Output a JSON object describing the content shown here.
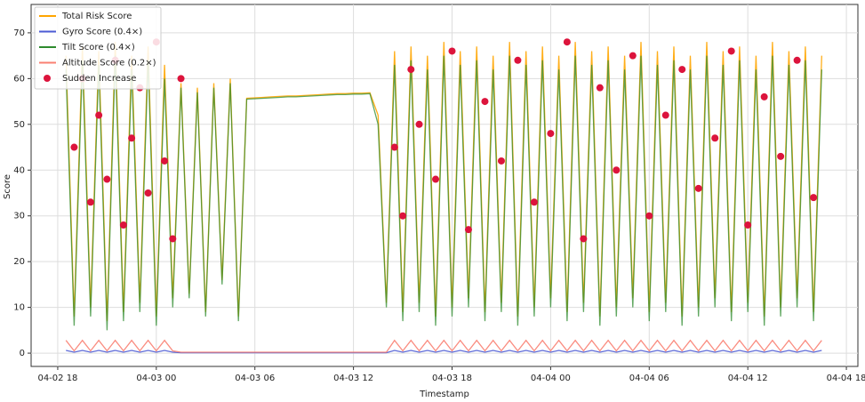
{
  "chart_data": {
    "type": "line",
    "xlabel": "Timestamp",
    "ylabel": "Score",
    "x": [
      0.5,
      1,
      1.5,
      2,
      2.5,
      3,
      3.5,
      4,
      4.5,
      5,
      5.5,
      6,
      6.5,
      7,
      7.5,
      8,
      8.5,
      9,
      9.5,
      10,
      10.5,
      11,
      11.5,
      12,
      12.5,
      13,
      13.5,
      14,
      14.5,
      15,
      15.5,
      16,
      16.5,
      17,
      17.5,
      18,
      18.5,
      19,
      19.5,
      20,
      20.5,
      21,
      21.5,
      22,
      22.5,
      23,
      23.5,
      24,
      24.5,
      25,
      25.5,
      26,
      26.5,
      27,
      27.5,
      28,
      28.5,
      29,
      29.5,
      30,
      30.5,
      31,
      31.5,
      32,
      32.5,
      33,
      33.5,
      34,
      34.5,
      35,
      35.5,
      36,
      36.5,
      37,
      37.5,
      38,
      38.5,
      39,
      39.5,
      40,
      40.5,
      41,
      41.5,
      42,
      42.5,
      43,
      43.5,
      44,
      44.5,
      45,
      45.5,
      46,
      46.5
    ],
    "series": [
      {
        "name": "Total Risk Score",
        "color": "#ffa500",
        "values": [
          65,
          8,
          67,
          10,
          66,
          7,
          68,
          9,
          65,
          11,
          67,
          8,
          63,
          12,
          59,
          13,
          58,
          9,
          59,
          16,
          60,
          8,
          55.7,
          55.8,
          55.9,
          56,
          56.1,
          56.2,
          56.2,
          56.3,
          56.4,
          56.5,
          56.6,
          56.7,
          56.7,
          56.8,
          56.8,
          56.9,
          52,
          11,
          66,
          9,
          67,
          11,
          65,
          8,
          68,
          10,
          66,
          12,
          67,
          9,
          65,
          11,
          68,
          8,
          66,
          10,
          67,
          12,
          65,
          9,
          68,
          11,
          66,
          8,
          67,
          10,
          65,
          12,
          68,
          9,
          66,
          11,
          67,
          8,
          65,
          10,
          68,
          12,
          66,
          9,
          67,
          11,
          65,
          8,
          68,
          10,
          66,
          12,
          67,
          9,
          65
        ]
      },
      {
        "name": "Gyro Score (0.4×)",
        "color": "#4c5bd4",
        "values": [
          0.6,
          0.2,
          0.6,
          0.2,
          0.6,
          0.2,
          0.6,
          0.2,
          0.6,
          0.2,
          0.6,
          0.2,
          0.6,
          0.2,
          0.1,
          0.1,
          0.1,
          0.1,
          0.1,
          0.1,
          0.1,
          0.1,
          0.1,
          0.1,
          0.1,
          0.1,
          0.1,
          0.1,
          0.1,
          0.1,
          0.1,
          0.1,
          0.1,
          0.1,
          0.1,
          0.1,
          0.1,
          0.1,
          0.1,
          0.1,
          0.6,
          0.2,
          0.6,
          0.2,
          0.6,
          0.2,
          0.6,
          0.2,
          0.6,
          0.2,
          0.6,
          0.2,
          0.6,
          0.2,
          0.6,
          0.2,
          0.6,
          0.2,
          0.6,
          0.2,
          0.6,
          0.2,
          0.6,
          0.2,
          0.6,
          0.2,
          0.6,
          0.2,
          0.6,
          0.2,
          0.6,
          0.2,
          0.6,
          0.2,
          0.6,
          0.2,
          0.6,
          0.2,
          0.6,
          0.2,
          0.6,
          0.2,
          0.6,
          0.2,
          0.6,
          0.2,
          0.6,
          0.2,
          0.6,
          0.2,
          0.6,
          0.2,
          0.6
        ]
      },
      {
        "name": "Tilt Score (0.4×)",
        "color": "#2e8b2e",
        "values": [
          62,
          6,
          64,
          8,
          63,
          5,
          65,
          7,
          62,
          9,
          64,
          6,
          60,
          10,
          58,
          12,
          57,
          8,
          58,
          15,
          59,
          7,
          55.5,
          55.6,
          55.7,
          55.8,
          55.9,
          56,
          56,
          56.1,
          56.2,
          56.3,
          56.4,
          56.5,
          56.5,
          56.6,
          56.6,
          56.7,
          50,
          10,
          63,
          7,
          64,
          9,
          62,
          6,
          65,
          8,
          63,
          10,
          64,
          7,
          62,
          9,
          65,
          6,
          63,
          8,
          64,
          10,
          62,
          7,
          65,
          9,
          63,
          6,
          64,
          8,
          62,
          10,
          65,
          7,
          63,
          9,
          64,
          6,
          62,
          8,
          65,
          10,
          63,
          7,
          64,
          9,
          62,
          6,
          65,
          8,
          63,
          10,
          64,
          7,
          62
        ]
      },
      {
        "name": "Altitude Score (0.2×)",
        "color": "#fa8072",
        "values": [
          2.8,
          0.5,
          2.8,
          0.5,
          2.8,
          0.5,
          2.8,
          0.5,
          2.8,
          0.5,
          2.8,
          0.5,
          2.8,
          0.5,
          0.2,
          0.2,
          0.2,
          0.2,
          0.2,
          0.2,
          0.2,
          0.2,
          0.2,
          0.2,
          0.2,
          0.2,
          0.2,
          0.2,
          0.2,
          0.2,
          0.2,
          0.2,
          0.2,
          0.2,
          0.2,
          0.2,
          0.2,
          0.2,
          0.2,
          0.2,
          2.8,
          0.5,
          2.8,
          0.5,
          2.8,
          0.5,
          2.8,
          0.5,
          2.8,
          0.5,
          2.8,
          0.5,
          2.8,
          0.5,
          2.8,
          0.5,
          2.8,
          0.5,
          2.8,
          0.5,
          2.8,
          0.5,
          2.8,
          0.5,
          2.8,
          0.5,
          2.8,
          0.5,
          2.8,
          0.5,
          2.8,
          0.5,
          2.8,
          0.5,
          2.8,
          0.5,
          2.8,
          0.5,
          2.8,
          0.5,
          2.8,
          0.5,
          2.8,
          0.5,
          2.8,
          0.5,
          2.8,
          0.5,
          2.8,
          0.5,
          2.8,
          0.5,
          2.8
        ]
      },
      {
        "name": "Sudden Increase",
        "type": "scatter",
        "color": "#dc143c",
        "x": [
          1,
          1.5,
          2,
          2.5,
          3,
          3.5,
          4,
          4.5,
          5,
          5.5,
          6,
          6.5,
          7,
          7.5,
          20.5,
          21,
          21.5,
          22,
          23,
          24,
          25,
          26,
          27,
          28,
          29,
          30,
          31,
          32,
          33,
          34,
          35,
          36,
          37,
          38,
          39,
          40,
          41,
          42,
          43,
          44,
          45,
          46
        ],
        "values": [
          45,
          60,
          33,
          52,
          38,
          64,
          28,
          47,
          58,
          35,
          68,
          42,
          25,
          60,
          45,
          30,
          62,
          50,
          38,
          66,
          27,
          55,
          42,
          64,
          33,
          48,
          68,
          25,
          58,
          40,
          65,
          30,
          52,
          62,
          36,
          47,
          66,
          28,
          56,
          43,
          64,
          34
        ]
      }
    ],
    "xlim": [
      -1.62,
      48.7
    ],
    "ylim": [
      -2.9,
      76.2
    ],
    "xticks": [
      {
        "value": 0,
        "label": "04-02 18"
      },
      {
        "value": 6,
        "label": "04-03 00"
      },
      {
        "value": 12,
        "label": "04-03 06"
      },
      {
        "value": 18,
        "label": "04-03 12"
      },
      {
        "value": 24,
        "label": "04-03 18"
      },
      {
        "value": 30,
        "label": "04-04 00"
      },
      {
        "value": 36,
        "label": "04-04 06"
      },
      {
        "value": 42,
        "label": "04-04 12"
      },
      {
        "value": 48,
        "label": "04-04 18"
      }
    ],
    "yticks": [
      0,
      10,
      20,
      30,
      40,
      50,
      60,
      70
    ],
    "grid": true,
    "legend": "upper-left"
  }
}
